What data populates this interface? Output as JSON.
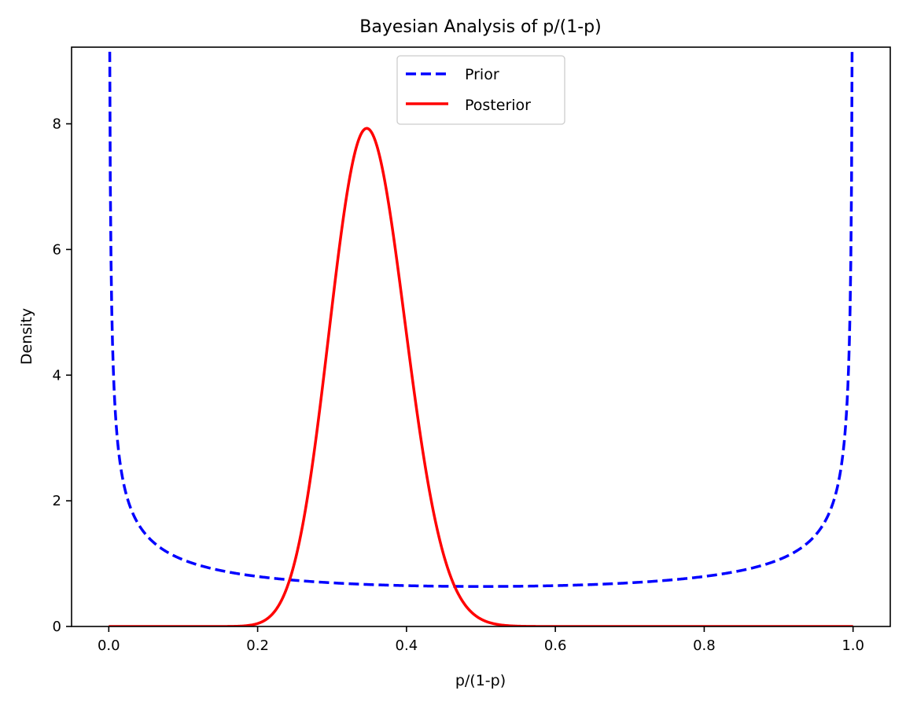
{
  "chart_data": {
    "type": "line",
    "title": "Bayesian Analysis of p/(1-p)",
    "xlabel": "p/(1-p)",
    "ylabel": "Density",
    "xlim": [
      -0.05,
      1.05
    ],
    "ylim": [
      0,
      9.22
    ],
    "xticks": [
      0.0,
      0.2,
      0.4,
      0.6,
      0.8,
      1.0
    ],
    "xtick_labels": [
      "0.0",
      "0.2",
      "0.4",
      "0.6",
      "0.8",
      "1.0"
    ],
    "yticks": [
      0,
      2,
      4,
      6,
      8
    ],
    "ytick_labels": [
      "0",
      "2",
      "4",
      "6",
      "8"
    ],
    "grid": false,
    "legend_position": "upper-center",
    "series": [
      {
        "name": "Prior",
        "color": "#0000ff",
        "linestyle": "dashed",
        "distribution": "beta",
        "alpha": 0.5,
        "beta": 0.5
      },
      {
        "name": "Posterior",
        "color": "#ff0000",
        "linestyle": "solid",
        "distribution": "beta",
        "alpha": 31.5,
        "beta": 58.5
      }
    ]
  }
}
